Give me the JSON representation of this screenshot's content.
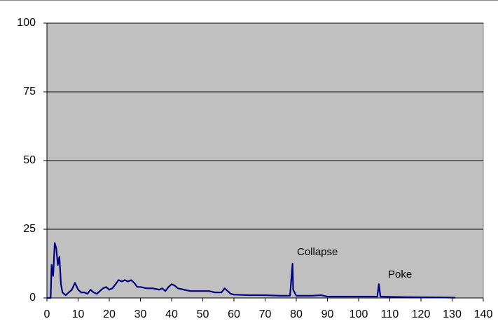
{
  "chart_data": {
    "type": "line",
    "annotations": [
      "Collapse",
      "Poke"
    ],
    "x": [
      0,
      1.2,
      1.5,
      2,
      2.5,
      3,
      3.5,
      4,
      4.5,
      5,
      6,
      7,
      8,
      9,
      10,
      11,
      12,
      13,
      14,
      15,
      16,
      17,
      18,
      19,
      20,
      21,
      22,
      23,
      24,
      25,
      26,
      27,
      28,
      29,
      30,
      32,
      34,
      36,
      37,
      38,
      39,
      40,
      41,
      42,
      44,
      46,
      48,
      50,
      52,
      54,
      56,
      57,
      58,
      59,
      60,
      65,
      70,
      75,
      78,
      78.8,
      79,
      80,
      85,
      88,
      90,
      100,
      106,
      106.5,
      107,
      115,
      125,
      131
    ],
    "series": [
      {
        "color": "#000080",
        "values": [
          0,
          0,
          12,
          8,
          20,
          18,
          12,
          15,
          5,
          2,
          1,
          2,
          3,
          5.5,
          3,
          2,
          2,
          1.5,
          3,
          2,
          1.5,
          2.5,
          3.5,
          4,
          3,
          3.5,
          5,
          6.5,
          6,
          6.5,
          6,
          6.5,
          5.5,
          4,
          4,
          3.5,
          3.5,
          3,
          3.5,
          2.5,
          4,
          5,
          4.5,
          3.5,
          3,
          2.5,
          2.5,
          2.5,
          2.5,
          2,
          2,
          3.5,
          2.5,
          1.5,
          1.2,
          1,
          1,
          0.8,
          0.8,
          12.5,
          3,
          0.8,
          0.8,
          1,
          0.5,
          0.5,
          0.5,
          5,
          0.5,
          0.3,
          0.2,
          0.1
        ]
      }
    ],
    "xlim": [
      0,
      140
    ],
    "xticks": [
      0,
      10,
      20,
      30,
      40,
      50,
      60,
      70,
      80,
      90,
      100,
      110,
      120,
      130,
      140
    ],
    "ylim": [
      0,
      100
    ],
    "yticks": [
      0,
      25,
      50,
      75,
      100
    ],
    "grid": true,
    "background": "#c0c0c0"
  }
}
